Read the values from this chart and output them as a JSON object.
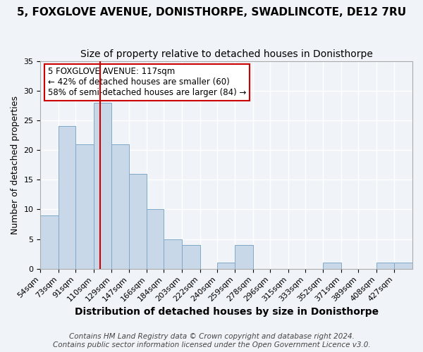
{
  "title": "5, FOXGLOVE AVENUE, DONISTHORPE, SWADLINCOTE, DE12 7RU",
  "subtitle": "Size of property relative to detached houses in Donisthorpe",
  "xlabel": "Distribution of detached houses by size in Donisthorpe",
  "ylabel": "Number of detached properties",
  "bin_labels": [
    "54sqm",
    "73sqm",
    "91sqm",
    "110sqm",
    "129sqm",
    "147sqm",
    "166sqm",
    "184sqm",
    "203sqm",
    "222sqm",
    "240sqm",
    "259sqm",
    "278sqm",
    "296sqm",
    "315sqm",
    "333sqm",
    "352sqm",
    "371sqm",
    "389sqm",
    "408sqm",
    "427sqm"
  ],
  "bin_values": [
    9,
    24,
    21,
    28,
    21,
    16,
    10,
    5,
    4,
    0,
    1,
    4,
    0,
    0,
    0,
    0,
    1,
    0,
    0,
    1,
    1
  ],
  "bin_edges": [
    54,
    73,
    91,
    110,
    129,
    147,
    166,
    184,
    203,
    222,
    240,
    259,
    278,
    296,
    315,
    333,
    352,
    371,
    389,
    408,
    427,
    446
  ],
  "bar_color": "#c8d8e8",
  "bar_edge_color": "#7fa8c8",
  "property_value": 117,
  "vline_color": "#cc0000",
  "annotation_text": "5 FOXGLOVE AVENUE: 117sqm\n← 42% of detached houses are smaller (60)\n58% of semi-detached houses are larger (84) →",
  "annotation_box_color": "#ffffff",
  "annotation_box_edge_color": "#cc0000",
  "ylim": [
    0,
    35
  ],
  "yticks": [
    0,
    5,
    10,
    15,
    20,
    25,
    30,
    35
  ],
  "footer_text": "Contains HM Land Registry data © Crown copyright and database right 2024.\nContains public sector information licensed under the Open Government Licence v3.0.",
  "background_color": "#f0f4f8",
  "grid_color": "#ffffff",
  "title_fontsize": 11,
  "subtitle_fontsize": 10,
  "xlabel_fontsize": 10,
  "ylabel_fontsize": 9,
  "tick_fontsize": 8,
  "footer_fontsize": 7.5
}
